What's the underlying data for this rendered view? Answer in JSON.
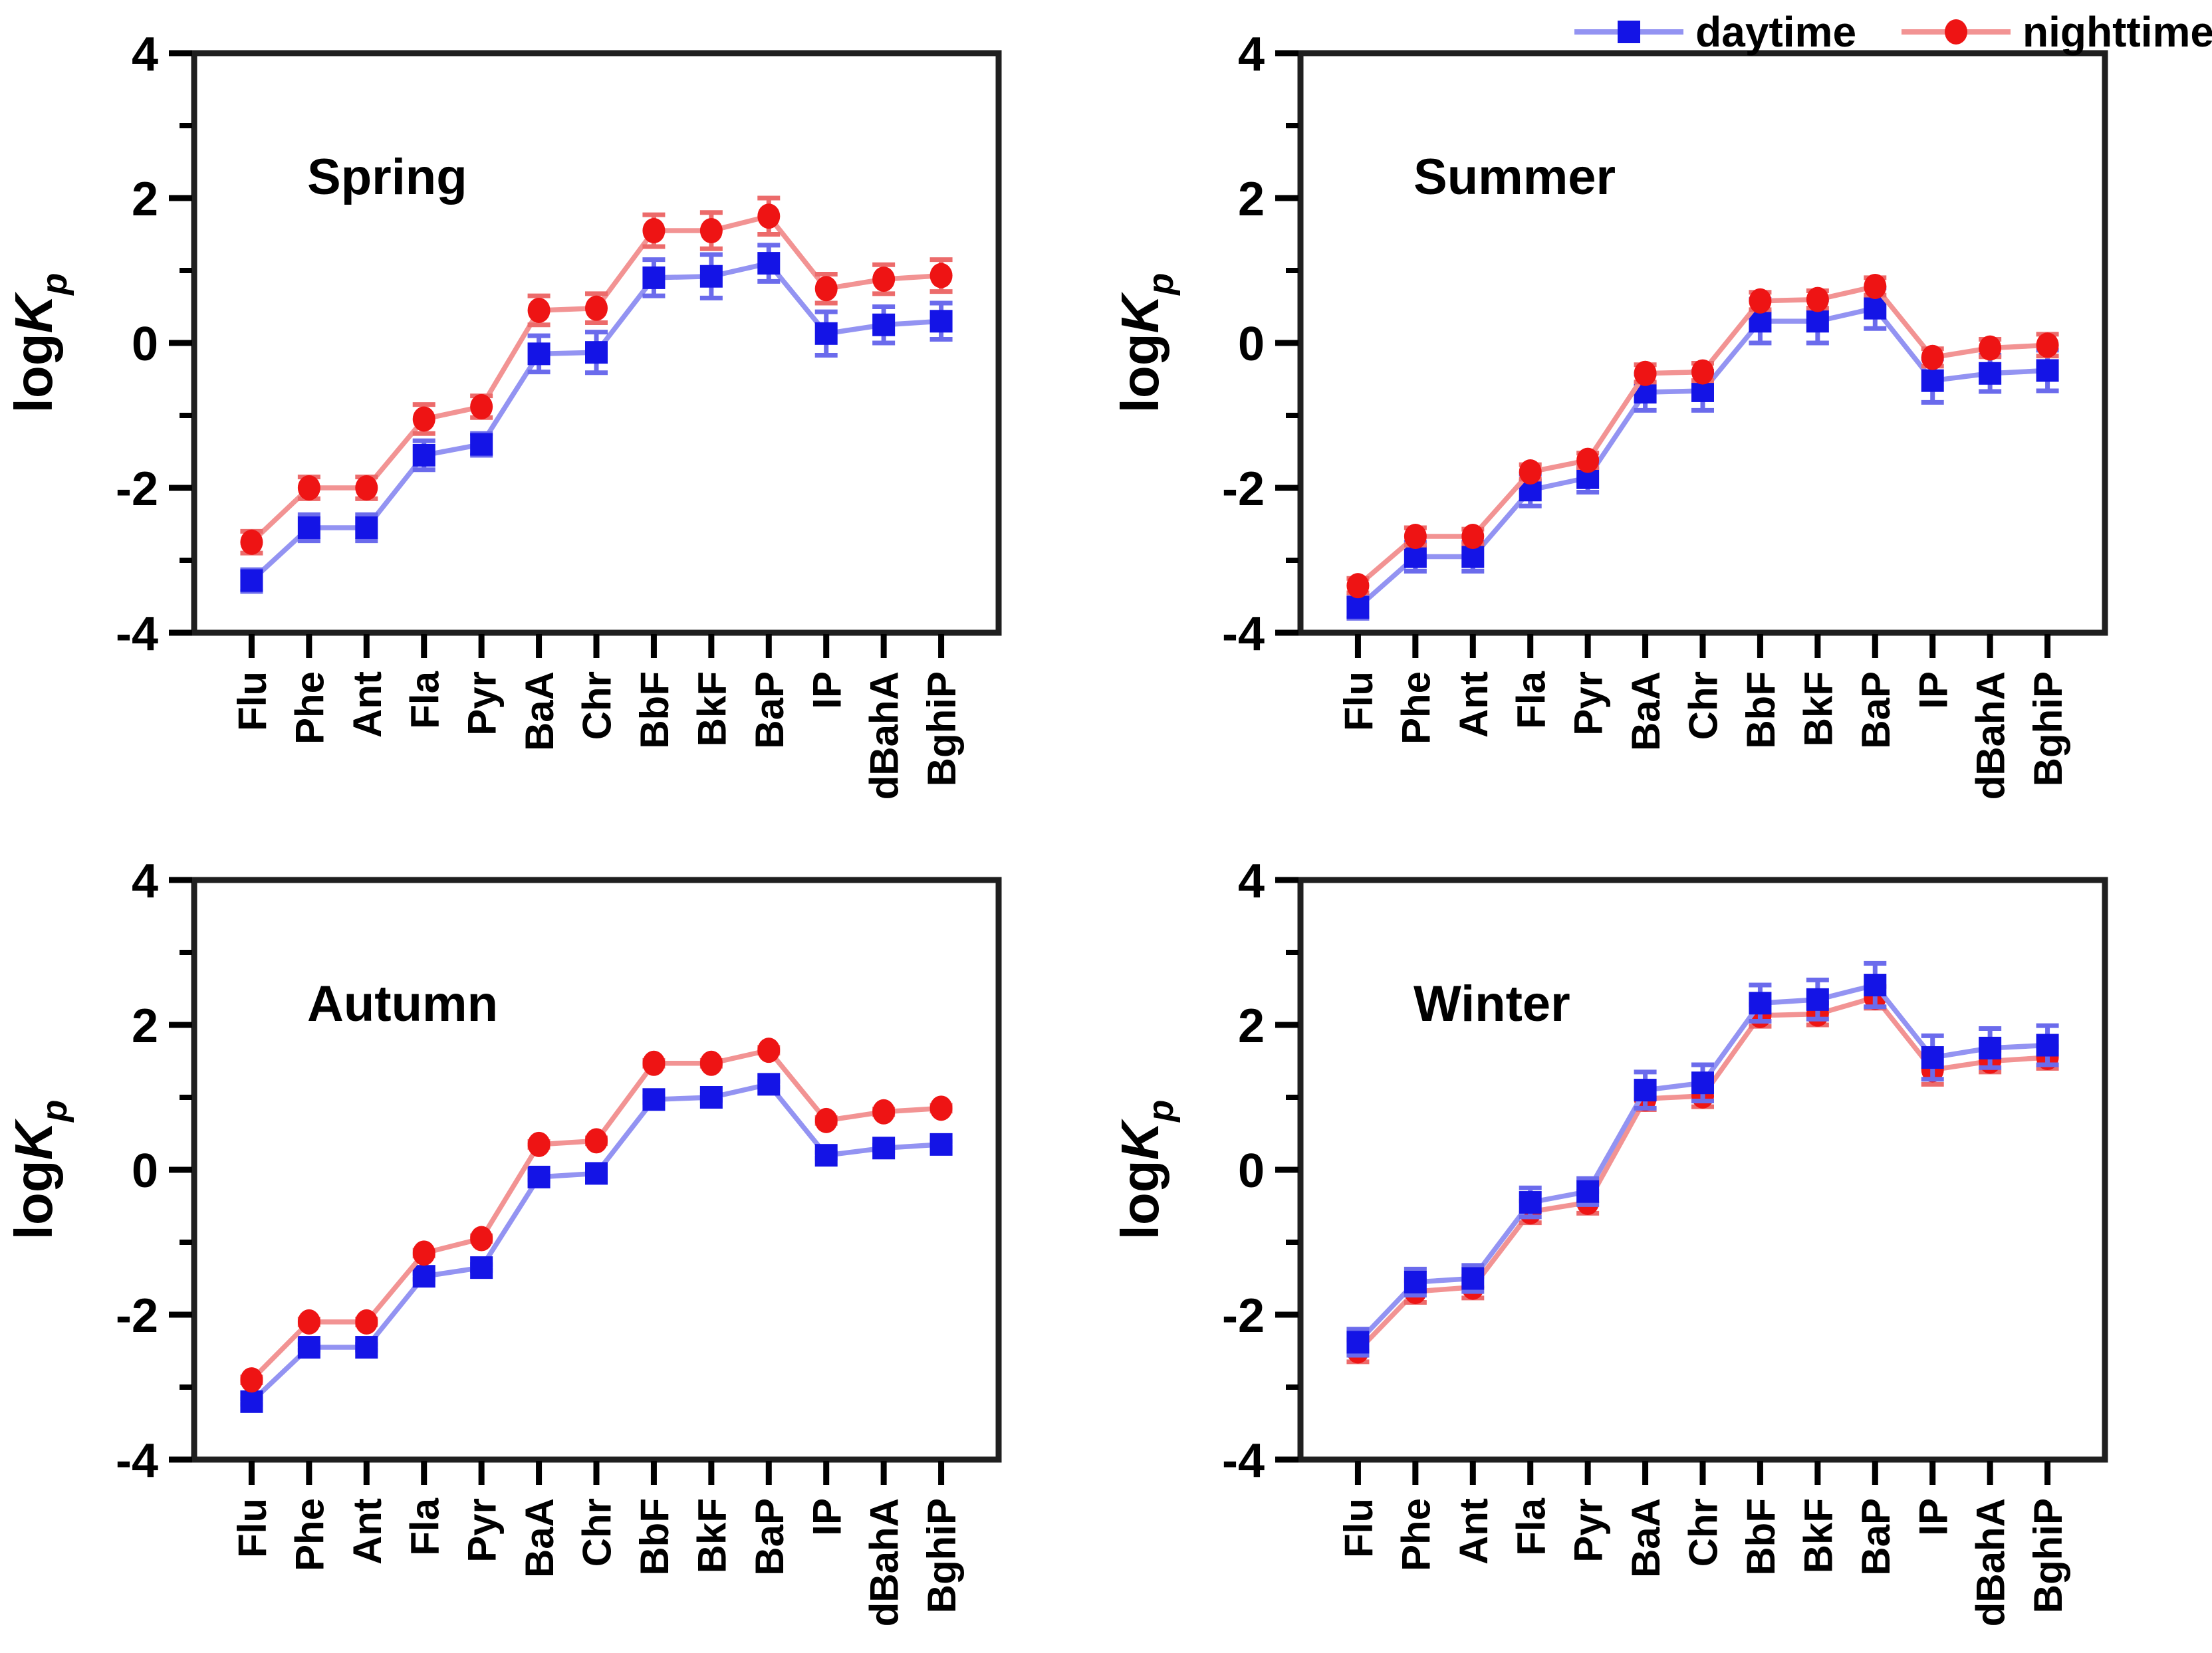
{
  "page": {
    "background": "#ffffff"
  },
  "legend": {
    "position": "top-right",
    "items": [
      {
        "id": "day",
        "label": "daytime"
      },
      {
        "id": "night",
        "label": "nighttime"
      }
    ]
  },
  "series_styles": {
    "day": {
      "marker": "square",
      "fill": "#1414e6",
      "line": "#9393f2",
      "err": "#6b6bec"
    },
    "night": {
      "marker": "circle",
      "fill": "#ee1414",
      "line": "#f29393",
      "err": "#ec6b6b"
    }
  },
  "axes": {
    "ylim": [
      -4,
      4
    ],
    "y_major_ticks": [
      4,
      2,
      0,
      -2,
      -4
    ],
    "y_minor_ticks": [
      3,
      1,
      -1,
      -3
    ],
    "y_label_parts": [
      {
        "text": "log",
        "style": "normal"
      },
      {
        "text": "K",
        "style": "italic"
      },
      {
        "text": "p",
        "style": "subscript"
      }
    ],
    "grid": false
  },
  "categories": [
    "Flu",
    "Phe",
    "Ant",
    "Fla",
    "Pyr",
    "BaA",
    "Chr",
    "BbF",
    "BkF",
    "BaP",
    "IP",
    "dBahA",
    "BghiP"
  ],
  "chart_data": [
    {
      "type": "line",
      "title": "Spring",
      "ylim": [
        -4,
        4
      ],
      "draw_order": [
        "day",
        "night"
      ],
      "series": {
        "day": {
          "name": "daytime",
          "values": [
            -3.28,
            -2.55,
            -2.55,
            -1.55,
            -1.4,
            -0.15,
            -0.13,
            0.9,
            0.92,
            1.1,
            0.13,
            0.25,
            0.3
          ],
          "errors": [
            0.15,
            0.18,
            0.18,
            0.2,
            0.15,
            0.25,
            0.28,
            0.25,
            0.3,
            0.25,
            0.3,
            0.25,
            0.25
          ]
        },
        "night": {
          "name": "nighttime",
          "values": [
            -2.75,
            -2.0,
            -2.0,
            -1.05,
            -0.88,
            0.45,
            0.48,
            1.55,
            1.55,
            1.75,
            0.75,
            0.88,
            0.93
          ],
          "errors": [
            0.15,
            0.15,
            0.15,
            0.2,
            0.15,
            0.2,
            0.2,
            0.22,
            0.25,
            0.25,
            0.2,
            0.2,
            0.22
          ]
        }
      }
    },
    {
      "type": "line",
      "title": "Summer",
      "ylim": [
        -4,
        4
      ],
      "draw_order": [
        "day",
        "night"
      ],
      "series": {
        "day": {
          "name": "daytime",
          "values": [
            -3.65,
            -2.95,
            -2.95,
            -2.03,
            -1.86,
            -0.68,
            -0.66,
            0.3,
            0.3,
            0.48,
            -0.52,
            -0.42,
            -0.38
          ],
          "errors": [
            0.15,
            0.2,
            0.2,
            0.22,
            0.2,
            0.25,
            0.27,
            0.3,
            0.3,
            0.28,
            0.3,
            0.25,
            0.28
          ]
        },
        "night": {
          "name": "nighttime",
          "values": [
            -3.35,
            -2.67,
            -2.67,
            -1.78,
            -1.62,
            -0.42,
            -0.4,
            0.58,
            0.6,
            0.78,
            -0.2,
            -0.07,
            -0.03
          ],
          "errors": [
            0.1,
            0.12,
            0.1,
            0.1,
            0.1,
            0.12,
            0.12,
            0.12,
            0.12,
            0.12,
            0.12,
            0.12,
            0.15
          ]
        }
      }
    },
    {
      "type": "line",
      "title": "Autumn",
      "ylim": [
        -4,
        4
      ],
      "draw_order": [
        "day",
        "night"
      ],
      "series": {
        "day": {
          "name": "daytime",
          "values": [
            -3.2,
            -2.45,
            -2.45,
            -1.47,
            -1.35,
            -0.1,
            -0.05,
            0.97,
            1.0,
            1.18,
            0.2,
            0.3,
            0.35
          ],
          "errors": [
            0.04,
            0.04,
            0.04,
            0.04,
            0.04,
            0.04,
            0.04,
            0.04,
            0.04,
            0.04,
            0.04,
            0.04,
            0.04
          ]
        },
        "night": {
          "name": "nighttime",
          "values": [
            -2.9,
            -2.1,
            -2.1,
            -1.15,
            -0.95,
            0.35,
            0.4,
            1.47,
            1.47,
            1.65,
            0.68,
            0.8,
            0.85
          ],
          "errors": [
            0.04,
            0.04,
            0.04,
            0.04,
            0.04,
            0.04,
            0.04,
            0.04,
            0.04,
            0.04,
            0.04,
            0.04,
            0.04
          ]
        }
      }
    },
    {
      "type": "line",
      "title": "Winter",
      "ylim": [
        -4,
        4
      ],
      "draw_order": [
        "night",
        "day"
      ],
      "series": {
        "day": {
          "name": "daytime",
          "values": [
            -2.38,
            -1.55,
            -1.5,
            -0.45,
            -0.3,
            1.1,
            1.2,
            2.3,
            2.35,
            2.55,
            1.55,
            1.68,
            1.72
          ],
          "errors": [
            0.18,
            0.18,
            0.18,
            0.2,
            0.18,
            0.25,
            0.25,
            0.25,
            0.27,
            0.3,
            0.3,
            0.27,
            0.27
          ]
        },
        "night": {
          "name": "nighttime",
          "values": [
            -2.5,
            -1.68,
            -1.62,
            -0.58,
            -0.45,
            0.98,
            1.02,
            2.13,
            2.15,
            2.38,
            1.38,
            1.5,
            1.55
          ],
          "errors": [
            0.15,
            0.15,
            0.15,
            0.15,
            0.15,
            0.15,
            0.15,
            0.15,
            0.15,
            0.15,
            0.2,
            0.15,
            0.15
          ]
        }
      }
    }
  ]
}
